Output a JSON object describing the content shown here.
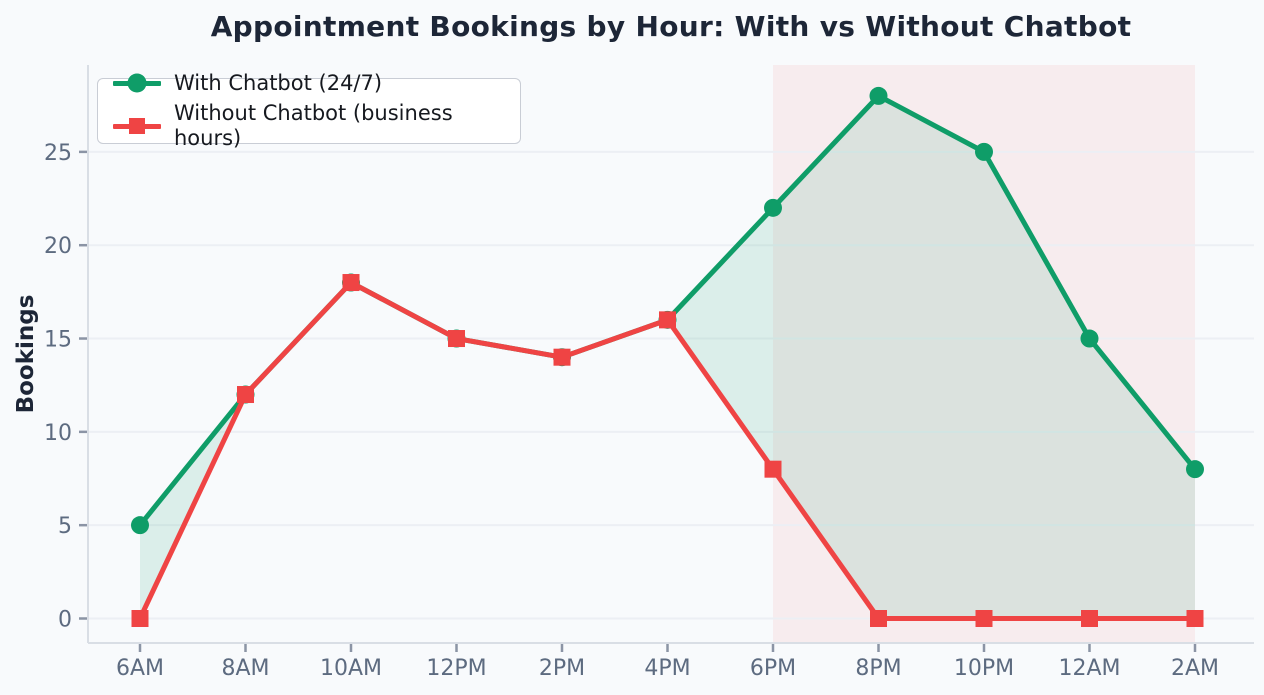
{
  "chart_data": {
    "type": "line",
    "title": "Appointment Bookings by Hour: With vs Without Chatbot",
    "xlabel": "",
    "ylabel": "Bookings",
    "categories": [
      "6AM",
      "8AM",
      "10AM",
      "12PM",
      "2PM",
      "4PM",
      "6PM",
      "8PM",
      "10PM",
      "12AM",
      "2AM"
    ],
    "series": [
      {
        "name": "With Chatbot (24/7)",
        "marker": "circle",
        "color": "#0f9d68",
        "values": [
          5,
          12,
          18,
          15,
          14,
          16,
          22,
          28,
          25,
          15,
          8
        ]
      },
      {
        "name": "Without Chatbot (business hours)",
        "marker": "square",
        "color": "#ef4444",
        "values": [
          0,
          12,
          18,
          15,
          14,
          16,
          8,
          0,
          0,
          0,
          0
        ]
      }
    ],
    "yticks": [
      0,
      5,
      10,
      15,
      20,
      25
    ],
    "ylim": [
      -1.3,
      29.7
    ],
    "grid": "horizontal",
    "legend_position": "upper-left",
    "fill_between": {
      "upper_series": "With Chatbot (24/7)",
      "lower_series": "Without Chatbot (business hours)",
      "color": "rgba(15,157,104,0.12)"
    },
    "shaded_region": {
      "from": "6PM",
      "to": "2AM",
      "color": "rgba(239,68,68,0.075)"
    }
  },
  "style": {
    "background": "#f8fafc",
    "grid_color": "#eceff4",
    "spine_color": "#d9dee5",
    "tick_mark_color": "#8b94a5",
    "tick_label_color": "#5d6b80",
    "line_width": 5,
    "marker_radius": 9
  }
}
